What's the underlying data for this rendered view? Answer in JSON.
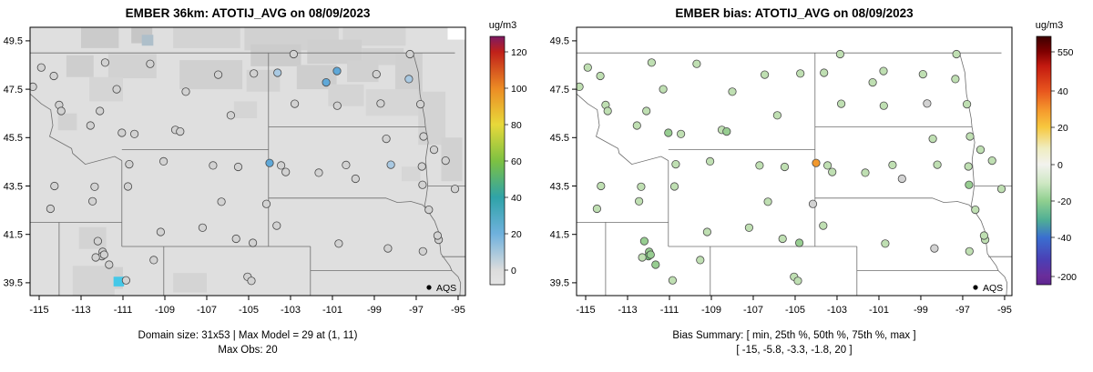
{
  "chart_data": {
    "type": "scatter-map",
    "legend_label": "AQS",
    "axis": {
      "x_ticks": [
        "-115",
        "-113",
        "-111",
        "-109",
        "-107",
        "-105",
        "-103",
        "-101",
        "-99",
        "-97",
        "-95"
      ],
      "y_ticks": [
        "39.5",
        "41.5",
        "43.5",
        "45.5",
        "47.5",
        "49.5"
      ],
      "lon_range": [
        -115.435,
        -94.65
      ],
      "lat_range": [
        38.97,
        50.06
      ]
    },
    "panels": [
      {
        "title": "EMBER 36km: ATOTIJ_AVG on 08/09/2023",
        "caption_line1": "Domain size: 31x53 | Max Model = 29 at (1, 11)",
        "caption_line2": "Max Obs: 20",
        "raster": true,
        "colorbar": {
          "label": "ug/m3",
          "ticks": [
            [
              "120",
              57
            ],
            [
              "100",
              97
            ],
            [
              "80",
              137
            ],
            [
              "60",
              177
            ],
            [
              "40",
              217
            ],
            [
              "20",
              257
            ],
            [
              "0",
              297
            ]
          ],
          "stops": [
            [
              0,
              "#7d1a63"
            ],
            [
              0.062,
              "#c0201a"
            ],
            [
              0.209,
              "#ec8b24"
            ],
            [
              0.355,
              "#e8d93a"
            ],
            [
              0.502,
              "#7dc142"
            ],
            [
              0.648,
              "#2fa3a8"
            ],
            [
              0.795,
              "#6fb1dd"
            ],
            [
              0.941,
              "#dcdcdc"
            ],
            [
              1,
              "#e4e4e4"
            ]
          ]
        }
      },
      {
        "title": "EMBER bias: ATOTIJ_AVG on 08/09/2023",
        "caption_line1": "Bias Summary: [ min, 25th %, 50th %, 75th %, max ]",
        "caption_line2": "[ -15, -5.8, -3.3, -1.8, 20 ]",
        "raster": false,
        "colorbar": {
          "label": "ug/m3",
          "ticks": [
            [
              "550",
              57
            ],
            [
              "40",
              100
            ],
            [
              "20",
              140
            ],
            [
              "0",
              181
            ],
            [
              "-20",
              221
            ],
            [
              "-40",
              261
            ],
            [
              "-200",
              304
            ]
          ],
          "stops": [
            [
              0,
              "#3d0000"
            ],
            [
              0.062,
              "#7f0000"
            ],
            [
              0.12,
              "#c41a10"
            ],
            [
              0.22,
              "#e8561e"
            ],
            [
              0.3,
              "#f59b2d"
            ],
            [
              0.366,
              "#f7c83f"
            ],
            [
              0.45,
              "#efedc0"
            ],
            [
              0.516,
              "#f2f2ee"
            ],
            [
              0.59,
              "#cfe8c4"
            ],
            [
              0.663,
              "#8fcf8f"
            ],
            [
              0.74,
              "#4fae95"
            ],
            [
              0.81,
              "#3a6fd0"
            ],
            [
              0.9,
              "#4b3fb5"
            ],
            [
              0.967,
              "#6a2d9a"
            ],
            [
              1,
              "#5e2590"
            ]
          ]
        }
      }
    ],
    "raster_base": "#dfdfdf",
    "raster_patches": [
      [
        -113.0,
        50.1,
        1.8,
        0.9,
        "#cbcbcb"
      ],
      [
        -110.6,
        50.1,
        1.0,
        0.7,
        "#c6c6c6"
      ],
      [
        -110.1,
        49.75,
        0.55,
        0.45,
        "#aebfca"
      ],
      [
        -108.6,
        50.1,
        3.2,
        0.9,
        "#d3d3d3"
      ],
      [
        -105.2,
        50.1,
        4.5,
        1.0,
        "#d1d1d1"
      ],
      [
        -100.5,
        50.1,
        3.0,
        0.8,
        "#d4d4d4"
      ],
      [
        -104.9,
        49.35,
        2.4,
        0.9,
        "#cccccc"
      ],
      [
        -102.2,
        49.55,
        2.6,
        1.0,
        "#cfcfcf"
      ],
      [
        -99.6,
        49.2,
        2.0,
        0.7,
        "#d2d2d2"
      ],
      [
        -113.7,
        48.9,
        1.3,
        0.9,
        "#cecece"
      ],
      [
        -111.7,
        48.95,
        2.3,
        1.0,
        "#d2d2d2"
      ],
      [
        -108.3,
        48.7,
        3.0,
        1.2,
        "#d0d0d0"
      ],
      [
        -105.1,
        48.3,
        1.6,
        0.9,
        "#d3d3d3"
      ],
      [
        -102.7,
        48.5,
        1.9,
        1.0,
        "#cecece"
      ],
      [
        -100.3,
        48.7,
        1.5,
        0.9,
        "#d1d1d1"
      ],
      [
        -98.0,
        49.0,
        1.3,
        1.6,
        "#d0d0d0"
      ],
      [
        -101.2,
        47.7,
        1.7,
        0.9,
        "#d4d4d4"
      ],
      [
        -99.4,
        47.5,
        2.5,
        1.1,
        "#d6d6d6"
      ],
      [
        -112.6,
        48.0,
        1.6,
        1.0,
        "#d5d5d5"
      ],
      [
        -96.9,
        47.4,
        1.3,
        2.2,
        "#d3d3d3"
      ],
      [
        -95.8,
        45.5,
        1.0,
        1.8,
        "#d1d1d1"
      ],
      [
        -114.1,
        46.5,
        0.9,
        0.7,
        "#d2d2d2"
      ],
      [
        -105.7,
        47.0,
        1.1,
        0.7,
        "#d5d5d5"
      ],
      [
        -97.7,
        44.3,
        0.9,
        0.6,
        "#d6d6d6"
      ],
      [
        -113.1,
        41.8,
        1.3,
        0.9,
        "#d3d3d3"
      ],
      [
        -111.9,
        40.15,
        0.9,
        0.9,
        "#d0d0d0"
      ],
      [
        -113.4,
        40.2,
        2.0,
        1.3,
        "#d4d4d4"
      ],
      [
        -108.6,
        39.9,
        1.6,
        0.8,
        "#d4d4d4"
      ],
      [
        -95.5,
        50.1,
        1.0,
        0.55,
        "#ffffff"
      ],
      [
        -111.45,
        39.75,
        0.5,
        0.4,
        "#45c8e8"
      ]
    ],
    "palette": {
      "g": "#d2d2d2",
      "b": "#a9c9e2",
      "B": "#5fa8d8",
      "lg": "#bfdfb2",
      "gg": "#97cd91",
      "dg": "#6dbd72",
      "o": "#f2992e"
    },
    "borders": [
      [
        [
          -116.05,
          49.0
        ],
        [
          -95.15,
          49.0
        ]
      ],
      [
        [
          -116.05,
          49.0
        ],
        [
          -116.05,
          48.0
        ],
        [
          -115.55,
          47.4
        ],
        [
          -114.9,
          46.9
        ],
        [
          -114.45,
          46.65
        ],
        [
          -114.35,
          46.0
        ],
        [
          -114.5,
          45.55
        ],
        [
          -113.45,
          45.05
        ],
        [
          -113.4,
          44.85
        ],
        [
          -112.8,
          44.4
        ],
        [
          -111.4,
          44.72
        ],
        [
          -111.05,
          44.55
        ]
      ],
      [
        [
          -111.05,
          45.0
        ],
        [
          -104.05,
          45.0
        ]
      ],
      [
        [
          -111.05,
          44.55
        ],
        [
          -111.05,
          41.0
        ]
      ],
      [
        [
          -115.45,
          42.0
        ],
        [
          -111.05,
          42.0
        ]
      ],
      [
        [
          -111.05,
          41.0
        ],
        [
          -102.05,
          41.0
        ]
      ],
      [
        [
          -104.05,
          49.0
        ],
        [
          -104.05,
          41.0
        ]
      ],
      [
        [
          -109.05,
          41.0
        ],
        [
          -109.05,
          38.9
        ]
      ],
      [
        [
          -114.05,
          42.0
        ],
        [
          -114.05,
          38.9
        ]
      ],
      [
        [
          -102.05,
          41.0
        ],
        [
          -102.05,
          38.9
        ]
      ],
      [
        [
          -104.05,
          45.94
        ],
        [
          -96.56,
          45.94
        ]
      ],
      [
        [
          -97.15,
          49.0
        ],
        [
          -96.9,
          48.2
        ],
        [
          -96.82,
          47.3
        ],
        [
          -96.6,
          46.3
        ],
        [
          -96.56,
          45.94
        ]
      ],
      [
        [
          -96.56,
          45.94
        ],
        [
          -96.43,
          45.3
        ],
        [
          -96.55,
          44.6
        ],
        [
          -96.45,
          43.5
        ],
        [
          -96.53,
          43.0
        ],
        [
          -96.6,
          42.7
        ],
        [
          -96.48,
          42.52
        ]
      ],
      [
        [
          -96.45,
          43.5
        ],
        [
          -94.6,
          43.5
        ]
      ],
      [
        [
          -104.05,
          43.0
        ],
        [
          -98.45,
          43.0
        ],
        [
          -97.9,
          42.82
        ],
        [
          -97.25,
          42.86
        ],
        [
          -96.7,
          42.72
        ],
        [
          -96.48,
          42.52
        ]
      ],
      [
        [
          -96.48,
          42.52
        ],
        [
          -96.12,
          42.05
        ],
        [
          -95.93,
          41.6
        ],
        [
          -95.87,
          41.1
        ],
        [
          -95.82,
          40.7
        ],
        [
          -95.4,
          40.2
        ],
        [
          -95.3,
          40.0
        ]
      ],
      [
        [
          -102.05,
          40.0
        ],
        [
          -95.3,
          40.0
        ]
      ],
      [
        [
          -95.77,
          40.58
        ],
        [
          -94.6,
          40.58
        ]
      ],
      [
        [
          -95.3,
          40.0
        ],
        [
          -95.0,
          39.75
        ],
        [
          -94.88,
          39.5
        ],
        [
          -94.92,
          38.9
        ]
      ]
    ],
    "sites": [
      [
        -114.9,
        48.4,
        "g",
        "lg"
      ],
      [
        -115.3,
        47.6,
        "g",
        "lg"
      ],
      [
        -114.3,
        48.05,
        "g",
        "lg"
      ],
      [
        -114.05,
        46.85,
        "g",
        "lg"
      ],
      [
        -113.95,
        46.6,
        "g",
        "lg"
      ],
      [
        -112.55,
        46.0,
        "g",
        "lg"
      ],
      [
        -112.1,
        46.6,
        "g",
        "lg"
      ],
      [
        -111.05,
        45.7,
        "g",
        "gg"
      ],
      [
        -110.45,
        45.65,
        "g",
        "lg"
      ],
      [
        -108.5,
        45.82,
        "g",
        "lg"
      ],
      [
        -108.27,
        45.75,
        "g",
        "gg"
      ],
      [
        -105.85,
        46.42,
        "g",
        "lg"
      ],
      [
        -109.7,
        48.55,
        "g",
        "lg"
      ],
      [
        -111.85,
        48.6,
        "g",
        "lg"
      ],
      [
        -111.3,
        47.5,
        "g",
        "lg"
      ],
      [
        -108.0,
        47.4,
        "g",
        "lg"
      ],
      [
        -106.45,
        48.1,
        "g",
        "lg"
      ],
      [
        -104.75,
        48.15,
        "g",
        "lg"
      ],
      [
        -102.85,
        48.95,
        "g",
        "lg"
      ],
      [
        -103.62,
        48.18,
        "b",
        "lg"
      ],
      [
        -102.8,
        46.9,
        "g",
        "lg"
      ],
      [
        -101.3,
        47.78,
        "B",
        "lg"
      ],
      [
        -100.78,
        48.25,
        "B",
        "lg"
      ],
      [
        -100.77,
        46.82,
        "g",
        "lg"
      ],
      [
        -98.9,
        48.12,
        "g",
        "lg"
      ],
      [
        -97.3,
        48.95,
        "g",
        "lg"
      ],
      [
        -97.35,
        47.92,
        "b",
        "lg"
      ],
      [
        -96.8,
        46.88,
        "g",
        "lg"
      ],
      [
        -98.7,
        46.91,
        "g",
        "g"
      ],
      [
        -96.65,
        45.55,
        "g",
        "lg"
      ],
      [
        -98.43,
        45.45,
        "g",
        "lg"
      ],
      [
        -100.35,
        44.37,
        "g",
        "lg"
      ],
      [
        -98.21,
        44.38,
        "b",
        "lg"
      ],
      [
        -96.73,
        44.31,
        "g",
        "lg"
      ],
      [
        -96.7,
        43.55,
        "g",
        "gg"
      ],
      [
        -96.4,
        42.52,
        "g",
        "lg"
      ],
      [
        -99.9,
        43.8,
        "g",
        "g"
      ],
      [
        -101.65,
        44.05,
        "g",
        "lg"
      ],
      [
        -103.23,
        44.08,
        "g",
        "lg"
      ],
      [
        -103.45,
        44.35,
        "g",
        "lg"
      ],
      [
        -104.0,
        44.45,
        "B",
        "o"
      ],
      [
        -106.7,
        44.35,
        "g",
        "lg"
      ],
      [
        -105.5,
        44.29,
        "g",
        "lg"
      ],
      [
        -109.06,
        44.52,
        "g",
        "lg"
      ],
      [
        -110.7,
        44.4,
        "g",
        "lg"
      ],
      [
        -110.76,
        43.48,
        "g",
        "lg"
      ],
      [
        -106.3,
        42.85,
        "g",
        "lg"
      ],
      [
        -104.15,
        42.76,
        "g",
        "g"
      ],
      [
        -107.2,
        41.78,
        "g",
        "lg"
      ],
      [
        -105.6,
        41.32,
        "g",
        "lg"
      ],
      [
        -104.8,
        41.15,
        "g",
        "gg"
      ],
      [
        -109.2,
        41.6,
        "g",
        "lg"
      ],
      [
        -114.27,
        43.5,
        "g",
        "lg"
      ],
      [
        -112.35,
        43.47,
        "g",
        "lg"
      ],
      [
        -112.45,
        42.87,
        "g",
        "lg"
      ],
      [
        -114.46,
        42.56,
        "g",
        "lg"
      ],
      [
        -112.2,
        41.22,
        "g",
        "gg"
      ],
      [
        -111.97,
        40.78,
        "g",
        "gg"
      ],
      [
        -112.0,
        40.6,
        "g",
        "dg"
      ],
      [
        -111.9,
        40.66,
        "g",
        "gg"
      ],
      [
        -111.66,
        40.25,
        "g",
        "gg"
      ],
      [
        -112.3,
        40.55,
        "g",
        "lg"
      ],
      [
        -109.53,
        40.44,
        "g",
        "lg"
      ],
      [
        -110.85,
        39.6,
        "g",
        "lg"
      ],
      [
        -105.05,
        39.75,
        "g",
        "lg"
      ],
      [
        -104.87,
        39.58,
        "g",
        "lg"
      ],
      [
        -103.66,
        41.86,
        "g",
        "lg"
      ],
      [
        -100.7,
        41.12,
        "g",
        "lg"
      ],
      [
        -98.35,
        40.92,
        "g",
        "g"
      ],
      [
        -96.68,
        40.8,
        "g",
        "lg"
      ],
      [
        -95.93,
        41.28,
        "g",
        "lg"
      ],
      [
        -95.98,
        41.45,
        "g",
        "lg"
      ],
      [
        -96.15,
        45.0,
        "g",
        "lg"
      ],
      [
        -95.6,
        44.55,
        "g",
        "lg"
      ],
      [
        -95.15,
        43.38,
        "g",
        "lg"
      ]
    ]
  }
}
